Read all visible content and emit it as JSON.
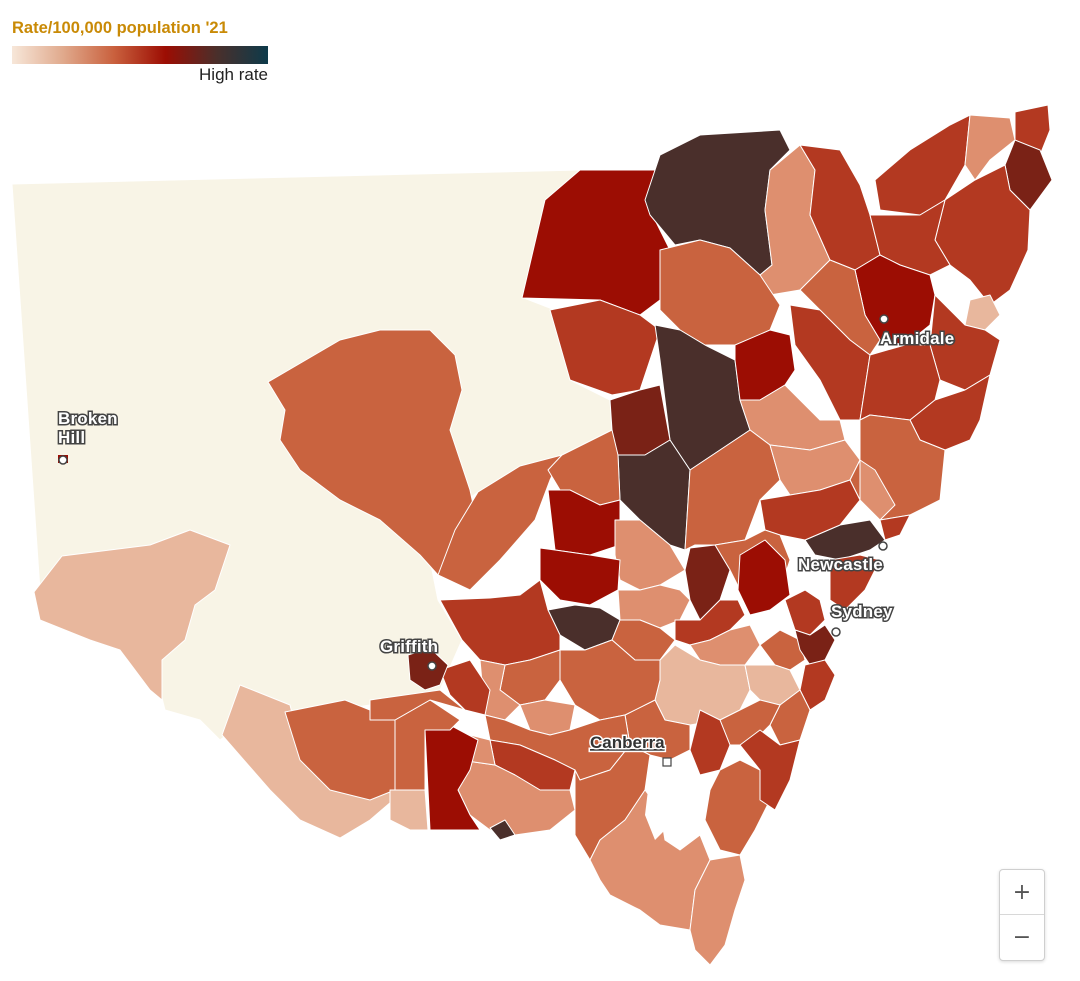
{
  "legend": {
    "title": "Rate/100,000 population '21",
    "high_label": "High rate",
    "title_color": "#c98a06",
    "gradient": [
      "#f7e7d9",
      "#e0a98c",
      "#c9603d",
      "#9c0d03",
      "#4a2f2b",
      "#0d3a4a"
    ]
  },
  "cities": {
    "broken_hill": [
      "Broken",
      "Hill"
    ],
    "griffith": "Griffith",
    "armidale": "Armidale",
    "newcastle": "Newcastle",
    "sydney": "Sydney",
    "canberra": "Canberra"
  },
  "colors": {
    "no_data": "#f8f4e6",
    "very_light": "#e8b79d",
    "light": "#de8f6f",
    "medium": "#c9633f",
    "medium_dark": "#b33921",
    "red": "#9c0d03",
    "dark_red": "#7a2216",
    "darkest": "#4a2f2b",
    "border": "#ffffff"
  },
  "zoom": {
    "in_icon": "+",
    "out_icon": "−"
  }
}
